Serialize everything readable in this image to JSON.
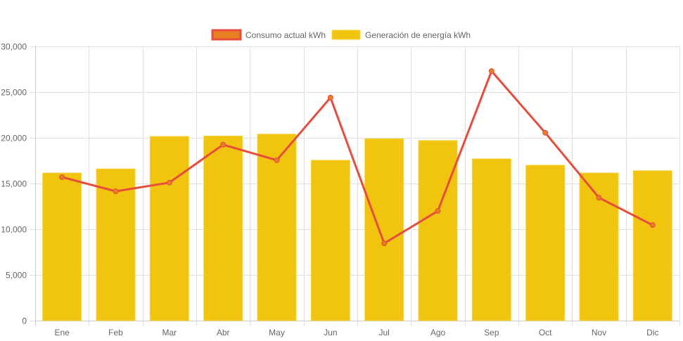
{
  "chart_data": {
    "type": "bar",
    "title": "",
    "xlabel": "",
    "ylabel": "",
    "categories": [
      "Ene",
      "Feb",
      "Mar",
      "Abr",
      "May",
      "Jun",
      "Jul",
      "Ago",
      "Sep",
      "Oct",
      "Nov",
      "Dic"
    ],
    "ylim": [
      0,
      30000
    ],
    "yticks": [
      0,
      5000,
      10000,
      15000,
      20000,
      25000,
      30000
    ],
    "ytick_labels": [
      "0",
      "5,000",
      "10,000",
      "15,000",
      "20,000",
      "25,000",
      "30,000"
    ],
    "grid": true,
    "legend_position": "top-center",
    "series": [
      {
        "name": "Consumo actual kWh",
        "type": "line",
        "color": "#e74c3c",
        "point_color": "#e67e22",
        "values": [
          15700,
          14150,
          15100,
          19250,
          17550,
          24400,
          8450,
          12000,
          27300,
          20550,
          13450,
          10450
        ]
      },
      {
        "name": "Generación de energía kWh",
        "type": "bar",
        "color": "#f1c40f",
        "values": [
          16150,
          16600,
          20150,
          20200,
          20400,
          17550,
          19900,
          19700,
          17700,
          17000,
          16150,
          16400
        ]
      }
    ]
  }
}
